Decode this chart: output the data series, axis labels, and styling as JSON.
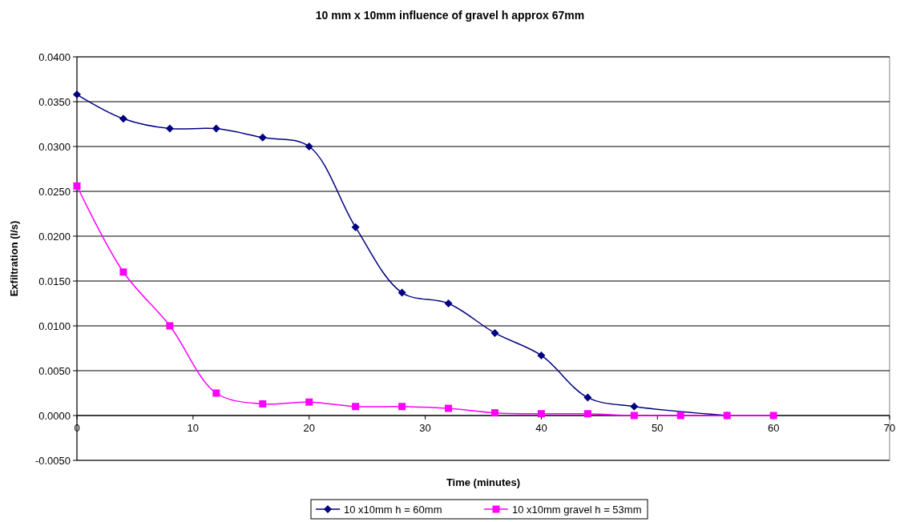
{
  "chart_data": {
    "type": "line",
    "title": "10 mm x 10mm influence of gravel h approx 67mm",
    "xlabel": "Time (minutes)",
    "ylabel": "Exfiltration (l/s)",
    "x": [
      0,
      4,
      8,
      12,
      16,
      20,
      24,
      28,
      32,
      36,
      40,
      44,
      48,
      52,
      56,
      60
    ],
    "series": [
      {
        "name": "10 x10mm h = 60mm",
        "color": "#000080",
        "marker": "diamond",
        "x": [
          0,
          4,
          8,
          12,
          16,
          20,
          24,
          28,
          32,
          36,
          40,
          44,
          48,
          52,
          56
        ],
        "values": [
          0.0358,
          0.0331,
          0.032,
          0.032,
          0.031,
          0.03,
          0.021,
          0.0137,
          0.0125,
          0.0092,
          0.0067,
          0.002,
          0.001,
          null,
          0
        ]
      },
      {
        "name": "10 x10mm gravel h = 53mm",
        "color": "#ff00ff",
        "marker": "square",
        "values": [
          0.0256,
          0.016,
          0.01,
          0.0025,
          0.0013,
          0.0015,
          0.001,
          0.001,
          0.0008,
          0.0003,
          0.0002,
          0.0002,
          0,
          0,
          0,
          0
        ]
      }
    ],
    "xlim": [
      0,
      70
    ],
    "xticks": [
      0,
      10,
      20,
      30,
      40,
      50,
      60,
      70
    ],
    "ylim": [
      -0.005,
      0.04
    ],
    "yticks": [
      {
        "value": -0.005,
        "label": "-0.0050"
      },
      {
        "value": 0,
        "label": "0.0000"
      },
      {
        "value": 0.005,
        "label": "0.0050"
      },
      {
        "value": 0.01,
        "label": "0.0100"
      },
      {
        "value": 0.015,
        "label": "0.0150"
      },
      {
        "value": 0.02,
        "label": "0.0200"
      },
      {
        "value": 0.025,
        "label": "0.0250"
      },
      {
        "value": 0.03,
        "label": "0.0300"
      },
      {
        "value": 0.035,
        "label": "0.0350"
      },
      {
        "value": 0.04,
        "label": "0.0400"
      }
    ],
    "grid": "y",
    "legend": "bottom",
    "line_style": "solid"
  }
}
